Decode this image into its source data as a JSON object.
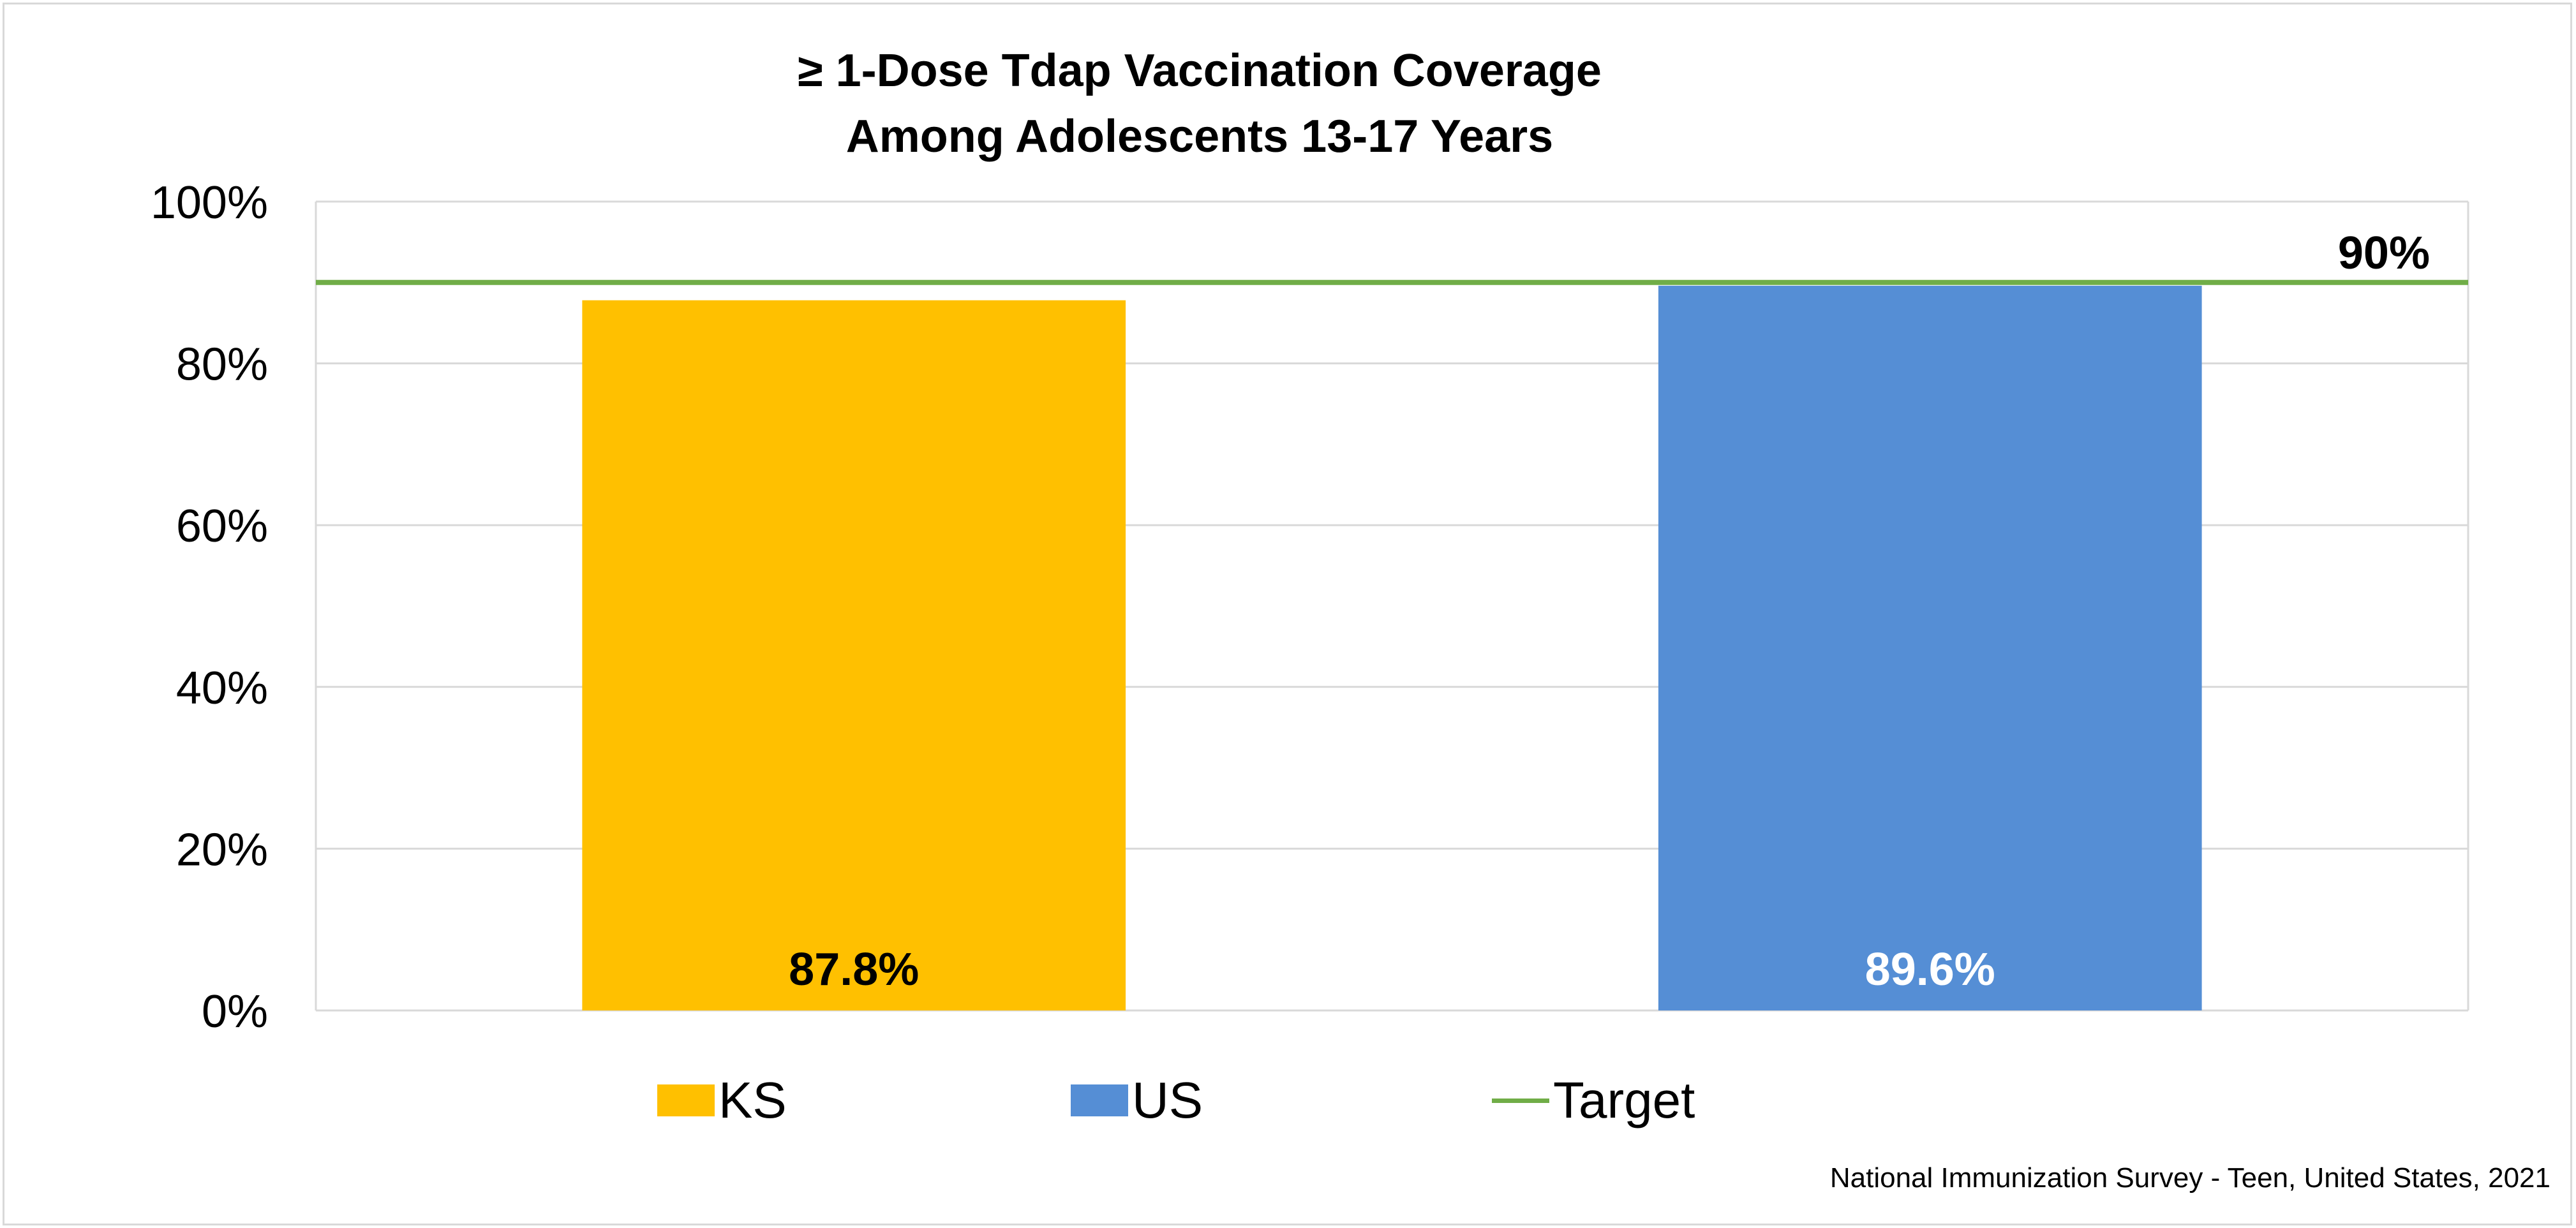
{
  "chart_data": {
    "type": "bar",
    "title_lines": [
      "≥ 1-Dose Tdap Vaccination Coverage",
      "Among Adolescents 13-17 Years"
    ],
    "categories": [
      "KS",
      "US"
    ],
    "values": [
      87.8,
      89.6
    ],
    "value_labels": [
      "87.8%",
      "89.6%"
    ],
    "bar_colors": [
      "#FFC000",
      "#558ED5"
    ],
    "value_label_colors": [
      "#000000",
      "#FFFFFF"
    ],
    "target": {
      "name": "Target",
      "value": 90,
      "label": "90%",
      "color": "#70AD47"
    },
    "ylim": [
      0,
      100
    ],
    "yticks": [
      0,
      20,
      40,
      60,
      80,
      100
    ],
    "ytick_labels": [
      "0%",
      "20%",
      "40%",
      "60%",
      "80%",
      "100%"
    ],
    "grid": true,
    "legend": {
      "position": "bottom",
      "entries": [
        "KS",
        "US",
        "Target"
      ]
    }
  },
  "source_note": "National Immunization Survey - Teen, United States, 2021"
}
